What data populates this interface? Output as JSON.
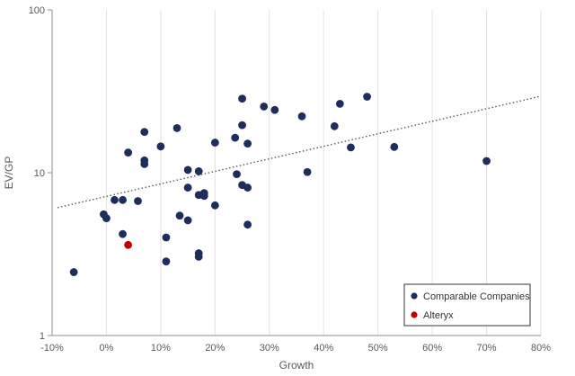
{
  "chart_data": {
    "type": "scatter",
    "xlabel": "Growth",
    "ylabel": "EV/GP",
    "x_scale": "linear",
    "y_scale": "log",
    "xlim": [
      -0.1,
      0.8
    ],
    "ylim": [
      1,
      100
    ],
    "x_ticks": [
      "-10%",
      "0%",
      "10%",
      "20%",
      "30%",
      "40%",
      "50%",
      "60%",
      "70%",
      "80%"
    ],
    "y_ticks": [
      "1",
      "10",
      "100"
    ],
    "grid": "vertical gridlines at x ticks",
    "legend_position": "bottom-right",
    "trendline": {
      "style": "dotted",
      "color": "#595959",
      "from": [
        -0.09,
        6.1
      ],
      "to": [
        0.8,
        29.5
      ]
    },
    "series": [
      {
        "name": "Comparable Companies",
        "color": "#1f2d5c",
        "points": [
          [
            -0.06,
            2.45
          ],
          [
            -0.005,
            5.55
          ],
          [
            0.0,
            5.25
          ],
          [
            0.015,
            6.8
          ],
          [
            0.03,
            6.8
          ],
          [
            0.03,
            4.2
          ],
          [
            0.04,
            13.3
          ],
          [
            0.058,
            6.7
          ],
          [
            0.07,
            17.8
          ],
          [
            0.07,
            11.9
          ],
          [
            0.07,
            11.3
          ],
          [
            0.1,
            14.5
          ],
          [
            0.11,
            4.0
          ],
          [
            0.11,
            2.85
          ],
          [
            0.13,
            18.8
          ],
          [
            0.135,
            5.45
          ],
          [
            0.15,
            10.4
          ],
          [
            0.15,
            8.1
          ],
          [
            0.15,
            5.1
          ],
          [
            0.17,
            10.2
          ],
          [
            0.17,
            7.3
          ],
          [
            0.17,
            3.2
          ],
          [
            0.17,
            3.05
          ],
          [
            0.18,
            7.5
          ],
          [
            0.18,
            7.2
          ],
          [
            0.2,
            15.3
          ],
          [
            0.2,
            6.3
          ],
          [
            0.237,
            16.4
          ],
          [
            0.24,
            9.8
          ],
          [
            0.25,
            28.5
          ],
          [
            0.25,
            19.6
          ],
          [
            0.25,
            8.4
          ],
          [
            0.26,
            15.1
          ],
          [
            0.26,
            8.1
          ],
          [
            0.26,
            4.8
          ],
          [
            0.29,
            25.5
          ],
          [
            0.31,
            24.3
          ],
          [
            0.36,
            22.2
          ],
          [
            0.37,
            10.1
          ],
          [
            0.42,
            19.3
          ],
          [
            0.43,
            26.5
          ],
          [
            0.45,
            14.3
          ],
          [
            0.48,
            29.3
          ],
          [
            0.53,
            14.4
          ],
          [
            0.7,
            11.8
          ]
        ]
      },
      {
        "name": "Alteryx",
        "color": "#c00000",
        "points": [
          [
            0.04,
            3.6
          ]
        ]
      }
    ]
  }
}
